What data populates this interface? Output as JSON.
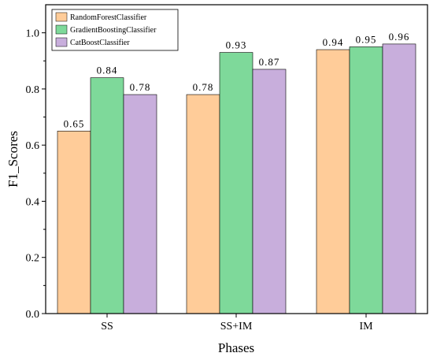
{
  "chart_data": {
    "type": "bar",
    "title": "",
    "xlabel": "Phases",
    "ylabel": "F1_Scores",
    "categories": [
      "SS",
      "SS+IM",
      "IM"
    ],
    "ylim": [
      0.0,
      1.1
    ],
    "yticks": [
      "0.0",
      "0.2",
      "0.4",
      "0.6",
      "0.8",
      "1.0"
    ],
    "ytick_values": [
      0.0,
      0.2,
      0.4,
      0.6,
      0.8,
      1.0
    ],
    "grid": false,
    "legend_position": "top-left",
    "series": [
      {
        "name": "RandomForestClassifier",
        "color": "#FFCC99",
        "values": [
          0.65,
          0.78,
          0.94
        ],
        "labels": [
          "0.65",
          "0.78",
          "0.94"
        ]
      },
      {
        "name": "GradientBoostingClassifier",
        "color": "#7ED99A",
        "values": [
          0.84,
          0.93,
          0.95
        ],
        "labels": [
          "0.84",
          "0.93",
          "0.95"
        ]
      },
      {
        "name": "CatBoostClassifier",
        "color": "#C8AEDC",
        "values": [
          0.78,
          0.87,
          0.96
        ],
        "labels": [
          "0.78",
          "0.87",
          "0.96"
        ]
      }
    ]
  }
}
